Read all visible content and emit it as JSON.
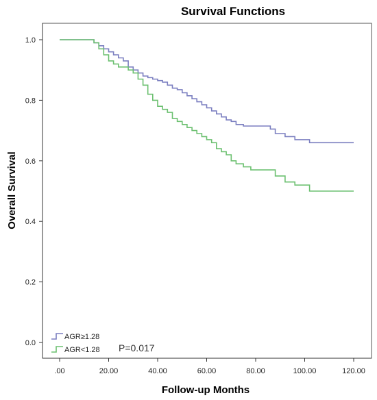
{
  "chart_data": {
    "type": "line",
    "title": "Survival Functions",
    "xlabel": "Follow-up Months",
    "ylabel": "Overall Survival",
    "xlim": [
      0,
      120
    ],
    "ylim": [
      0,
      1.0
    ],
    "x_ticks": [
      0,
      20,
      40,
      60,
      80,
      100,
      120
    ],
    "x_tick_labels": [
      ".00",
      "20.00",
      "40.00",
      "60.00",
      "80.00",
      "100.00",
      "120.00"
    ],
    "y_ticks": [
      0,
      0.2,
      0.4,
      0.6,
      0.8,
      1.0
    ],
    "y_tick_labels": [
      "0.0",
      "0.2",
      "0.4",
      "0.6",
      "0.8",
      "1.0"
    ],
    "grid": false,
    "legend_position": "bottom-left",
    "annotation": "P=0.017",
    "series": [
      {
        "name": "AGR≥1.28",
        "color": "#7b7fc0",
        "step": true,
        "x": [
          0,
          14,
          16,
          18,
          20,
          22,
          24,
          26,
          28,
          30,
          32,
          34,
          36,
          38,
          40,
          42,
          44,
          46,
          48,
          50,
          52,
          54,
          56,
          58,
          60,
          62,
          64,
          66,
          68,
          70,
          72,
          75,
          78,
          82,
          86,
          88,
          92,
          96,
          102,
          120
        ],
        "y": [
          1.0,
          0.99,
          0.98,
          0.97,
          0.96,
          0.95,
          0.94,
          0.93,
          0.91,
          0.9,
          0.89,
          0.88,
          0.875,
          0.87,
          0.865,
          0.86,
          0.85,
          0.84,
          0.835,
          0.825,
          0.815,
          0.805,
          0.795,
          0.785,
          0.775,
          0.765,
          0.755,
          0.745,
          0.735,
          0.73,
          0.72,
          0.715,
          0.715,
          0.715,
          0.705,
          0.69,
          0.68,
          0.67,
          0.66,
          0.66
        ]
      },
      {
        "name": "AGR<1.28",
        "color": "#6cc070",
        "step": true,
        "x": [
          0,
          14,
          16,
          18,
          20,
          22,
          24,
          26,
          28,
          30,
          32,
          34,
          36,
          38,
          40,
          42,
          44,
          46,
          48,
          50,
          52,
          54,
          56,
          58,
          60,
          62,
          64,
          66,
          68,
          70,
          72,
          75,
          78,
          82,
          86,
          88,
          92,
          96,
          102,
          120
        ],
        "y": [
          1.0,
          0.99,
          0.97,
          0.95,
          0.93,
          0.92,
          0.91,
          0.91,
          0.9,
          0.89,
          0.87,
          0.85,
          0.82,
          0.8,
          0.78,
          0.77,
          0.76,
          0.74,
          0.73,
          0.72,
          0.71,
          0.7,
          0.69,
          0.68,
          0.67,
          0.66,
          0.64,
          0.63,
          0.62,
          0.6,
          0.59,
          0.58,
          0.57,
          0.57,
          0.57,
          0.55,
          0.53,
          0.52,
          0.5,
          0.5
        ]
      }
    ]
  }
}
